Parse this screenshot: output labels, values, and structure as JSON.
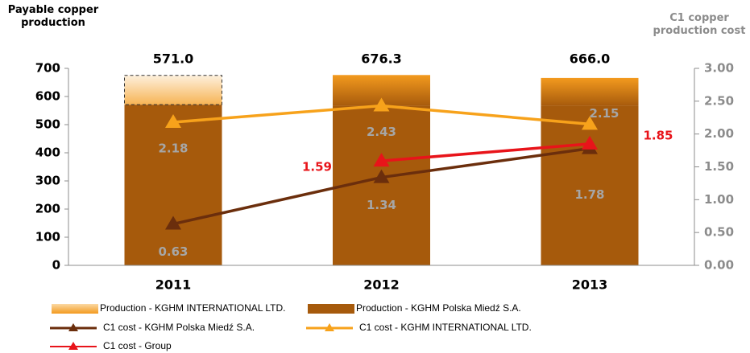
{
  "chart_data": {
    "type": "bar",
    "title": "Payable copper production",
    "y2_title": "C1 copper production cost",
    "categories": [
      "2011",
      "2012",
      "2013"
    ],
    "ylim": [
      0,
      700
    ],
    "yticks": [
      0,
      100,
      200,
      300,
      400,
      500,
      600,
      700
    ],
    "y2lim": [
      0,
      3
    ],
    "y2ticks": [
      {
        "value": 0,
        "label": "0.00"
      },
      {
        "value": 0.5,
        "label": "0.50"
      },
      {
        "value": 1,
        "label": "1.00"
      },
      {
        "value": 1.5,
        "label": "1.50"
      },
      {
        "value": 2,
        "label": "2.00"
      },
      {
        "value": 2.5,
        "label": "2.50"
      },
      {
        "value": 3,
        "label": "3.00"
      }
    ],
    "series": [
      {
        "name": "Production - KGHM Polska Miedź S.A.",
        "type": "bar",
        "color": "#a65a0c",
        "values": [
          571,
          566,
          566
        ]
      },
      {
        "name": "Production - KGHM INTERNATIONAL LTD.",
        "type": "bar",
        "color": "#f39a1e",
        "values": [
          104,
          110.3,
          100
        ],
        "dashed": [
          true,
          false,
          false
        ]
      },
      {
        "name": "C1 cost - KGHM Polska Miedź S.A.",
        "type": "line",
        "axis": "y2",
        "color": "#6b2e0c",
        "marker": "triangle",
        "values": [
          0.63,
          1.34,
          1.78
        ],
        "label_color": "#a6a6a6"
      },
      {
        "name": "C1 cost - KGHM INTERNATIONAL LTD.",
        "type": "line",
        "axis": "y2",
        "color": "#f7a21b",
        "marker": "triangle",
        "values": [
          2.18,
          2.43,
          2.15
        ],
        "label_color": "#a6a6a6"
      },
      {
        "name": "C1 cost - Group",
        "type": "line",
        "axis": "y2",
        "color": "#e8141a",
        "marker": "triangle",
        "values": [
          null,
          1.59,
          1.85
        ],
        "label_color": "#e8141a"
      }
    ],
    "totals": {
      "values": [
        571,
        676.3,
        666
      ],
      "value_labels": [
        "571.0",
        "676.3",
        "666.0"
      ]
    }
  }
}
